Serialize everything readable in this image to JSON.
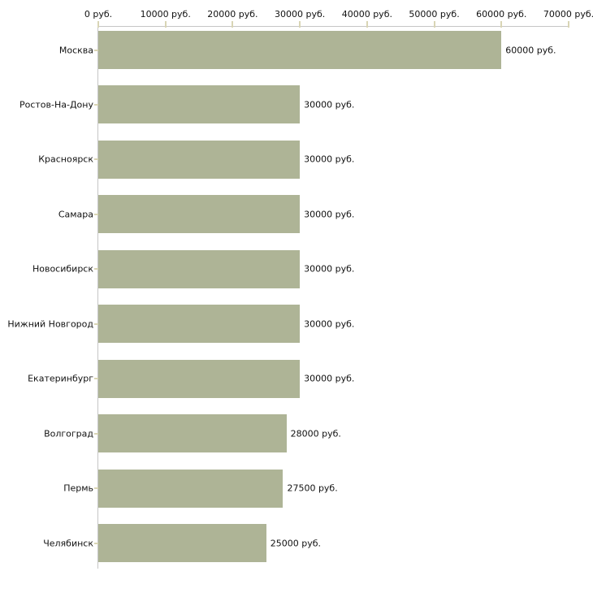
{
  "chart_data": {
    "type": "bar",
    "orientation": "horizontal",
    "title": "",
    "xlabel": "",
    "ylabel": "",
    "categories": [
      "Москва",
      "Ростов-На-Дону",
      "Красноярск",
      "Самара",
      "Новосибирск",
      "Нижний Новгород",
      "Екатеринбург",
      "Волгоград",
      "Пермь",
      "Челябинск"
    ],
    "values": [
      60000,
      30000,
      30000,
      30000,
      30000,
      30000,
      30000,
      28000,
      27500,
      25000
    ],
    "value_labels": [
      "60000 руб.",
      "30000 руб.",
      "30000 руб.",
      "30000 руб.",
      "30000 руб.",
      "30000 руб.",
      "30000 руб.",
      "28000 руб.",
      "27500 руб.",
      "25000 руб."
    ],
    "x_ticks": [
      0,
      10000,
      20000,
      30000,
      40000,
      50000,
      60000,
      70000
    ],
    "x_tick_labels": [
      "0 руб.",
      "10000 руб.",
      "20000 руб.",
      "30000 руб.",
      "40000 руб.",
      "50000 руб.",
      "60000 руб.",
      "70000 руб."
    ],
    "xlim": [
      0,
      70000
    ],
    "grid": false,
    "legend": false,
    "colors": {
      "bar": "#aeb496",
      "axis_line": "#c6c6c6",
      "tick_mark": "#d9d5b5",
      "text": "#111111",
      "background": "#ffffff"
    }
  }
}
